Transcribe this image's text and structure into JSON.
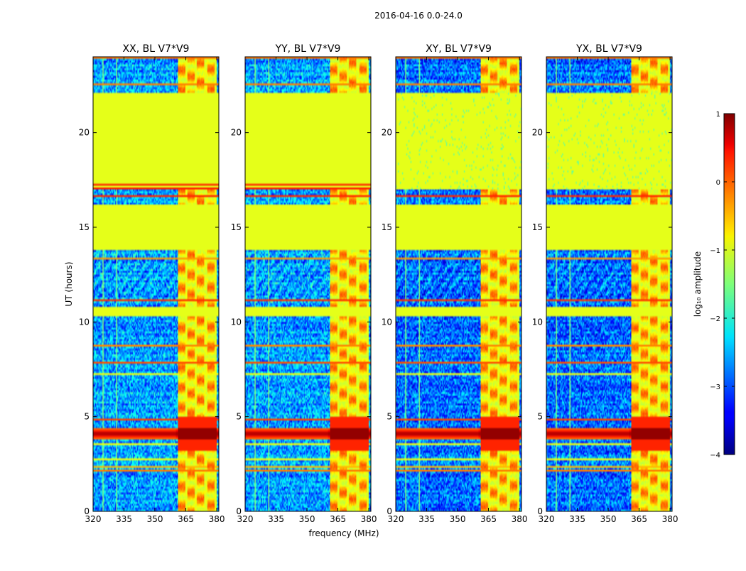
{
  "chart_data": {
    "type": "heatmap",
    "title": "2016-04-16 0.0-24.0",
    "xlabel": "frequency (MHz)",
    "ylabel": "UT (hours)",
    "xlim": [
      320,
      381
    ],
    "ylim": [
      0,
      24
    ],
    "xticks": [
      320,
      335,
      350,
      365,
      380
    ],
    "yticks": [
      0,
      5,
      10,
      15,
      20
    ],
    "panels": [
      {
        "title": "XX, BL V7*V9",
        "pol": "XX"
      },
      {
        "title": "YY, BL V7*V9",
        "pol": "YY"
      },
      {
        "title": "XY, BL V7*V9",
        "pol": "XY"
      },
      {
        "title": "YX, BL V7*V9",
        "pol": "YX"
      }
    ],
    "colorbar": {
      "label": "log₁₀ amplitude",
      "range": [
        -4,
        1
      ],
      "ticks": [
        1,
        0,
        -1,
        -2,
        -3,
        -4
      ],
      "tick_labels": [
        "1",
        "0",
        "−1",
        "−2",
        "−3",
        "−4"
      ],
      "colormap": "jet"
    },
    "flagged_hours": [
      [
        10.3,
        10.8
      ],
      [
        13.8,
        16.2
      ],
      [
        17.0,
        22.1
      ]
    ],
    "flagged_level": -1.0,
    "rfi_band_mhz": [
      361,
      380
    ],
    "strong_event_hours": [
      3.8,
      4.4
    ]
  },
  "colors": {
    "background": "#ffffff",
    "axis": "#000000"
  }
}
